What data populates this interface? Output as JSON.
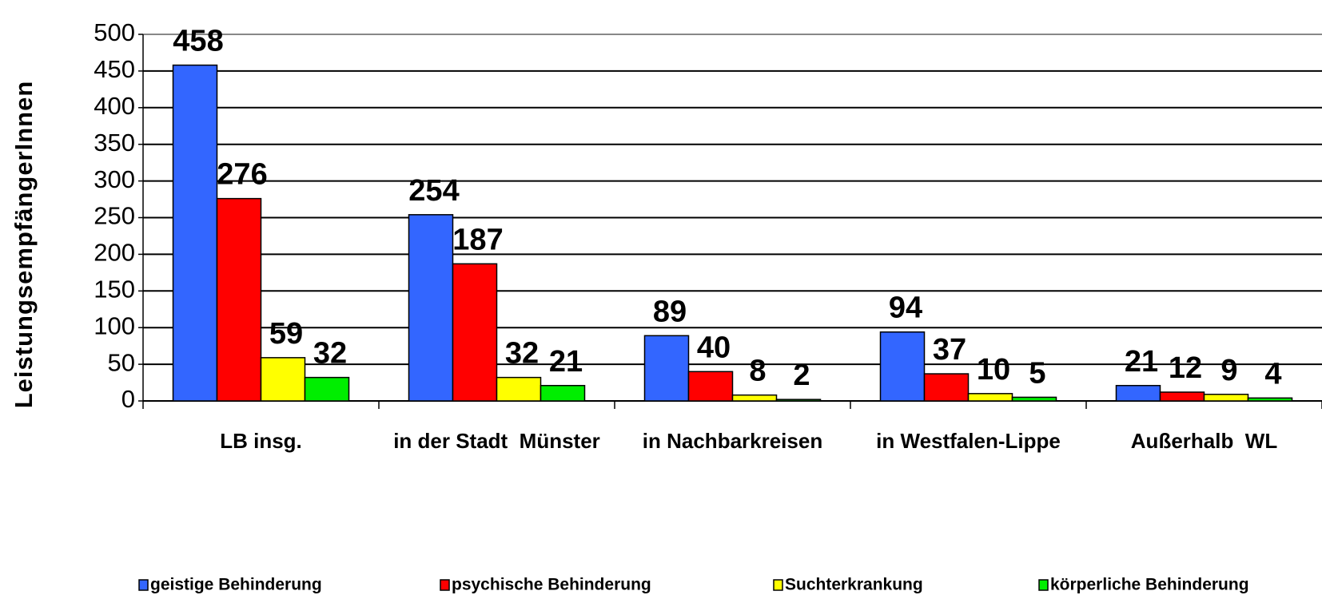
{
  "chart_data": {
    "type": "bar",
    "y_label": "LeistungsempfängerInnen",
    "categories": [
      "LB insg.",
      "in der Stadt  Münster",
      "in Nachbarkreisen",
      "in Westfalen-Lippe",
      "Außerhalb  WL"
    ],
    "series": [
      {
        "name": "geistige Behinderung",
        "color": "#3366ff",
        "values": [
          458,
          254,
          89,
          94,
          21
        ]
      },
      {
        "name": "psychische Behinderung",
        "color": "#ff0000",
        "values": [
          276,
          187,
          40,
          37,
          12
        ]
      },
      {
        "name": "Suchterkrankung",
        "color": "#ffff00",
        "values": [
          59,
          32,
          8,
          10,
          9
        ]
      },
      {
        "name": "körperliche Behinderung",
        "color": "#00ee00",
        "values": [
          32,
          21,
          2,
          5,
          4
        ]
      }
    ],
    "ylim": [
      0,
      500
    ],
    "yticks": [
      0,
      50,
      100,
      150,
      200,
      250,
      300,
      350,
      400,
      450,
      500
    ],
    "grid": true,
    "legend": "bottom"
  }
}
